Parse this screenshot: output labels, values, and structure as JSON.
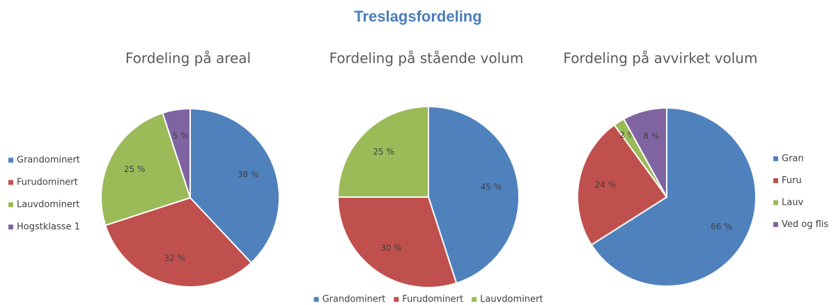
{
  "title": "Treslagsfordeling",
  "chart_data": [
    {
      "type": "pie",
      "title": "Fordeling på areal",
      "categories": [
        "Grandominert",
        "Furudominert",
        "Lauvdominert",
        "Hogstklasse 1"
      ],
      "values": [
        38,
        32,
        25,
        5
      ],
      "value_labels": [
        "38 %",
        "32 %",
        "25 %",
        "5 %"
      ],
      "colors": [
        "#4f81bd",
        "#c0504d",
        "#9bbb59",
        "#8064a2"
      ],
      "legend": "left"
    },
    {
      "type": "pie",
      "title": "Fordeling på stående volum",
      "categories": [
        "Grandominert",
        "Furudominert",
        "Lauvdominert"
      ],
      "values": [
        45,
        30,
        25
      ],
      "value_labels": [
        "45 %",
        "30 %",
        "25 %"
      ],
      "colors": [
        "#4f81bd",
        "#c0504d",
        "#9bbb59"
      ],
      "legend": "bottom"
    },
    {
      "type": "pie",
      "title": "Fordeling på avvirket volum",
      "categories": [
        "Gran",
        "Furu",
        "Lauv",
        "Ved og flis"
      ],
      "values": [
        66,
        24,
        2,
        8
      ],
      "value_labels": [
        "66 %",
        "24 %",
        "2 %",
        "8 %"
      ],
      "colors": [
        "#4f81bd",
        "#c0504d",
        "#9bbb59",
        "#8064a2"
      ],
      "legend": "right"
    }
  ]
}
